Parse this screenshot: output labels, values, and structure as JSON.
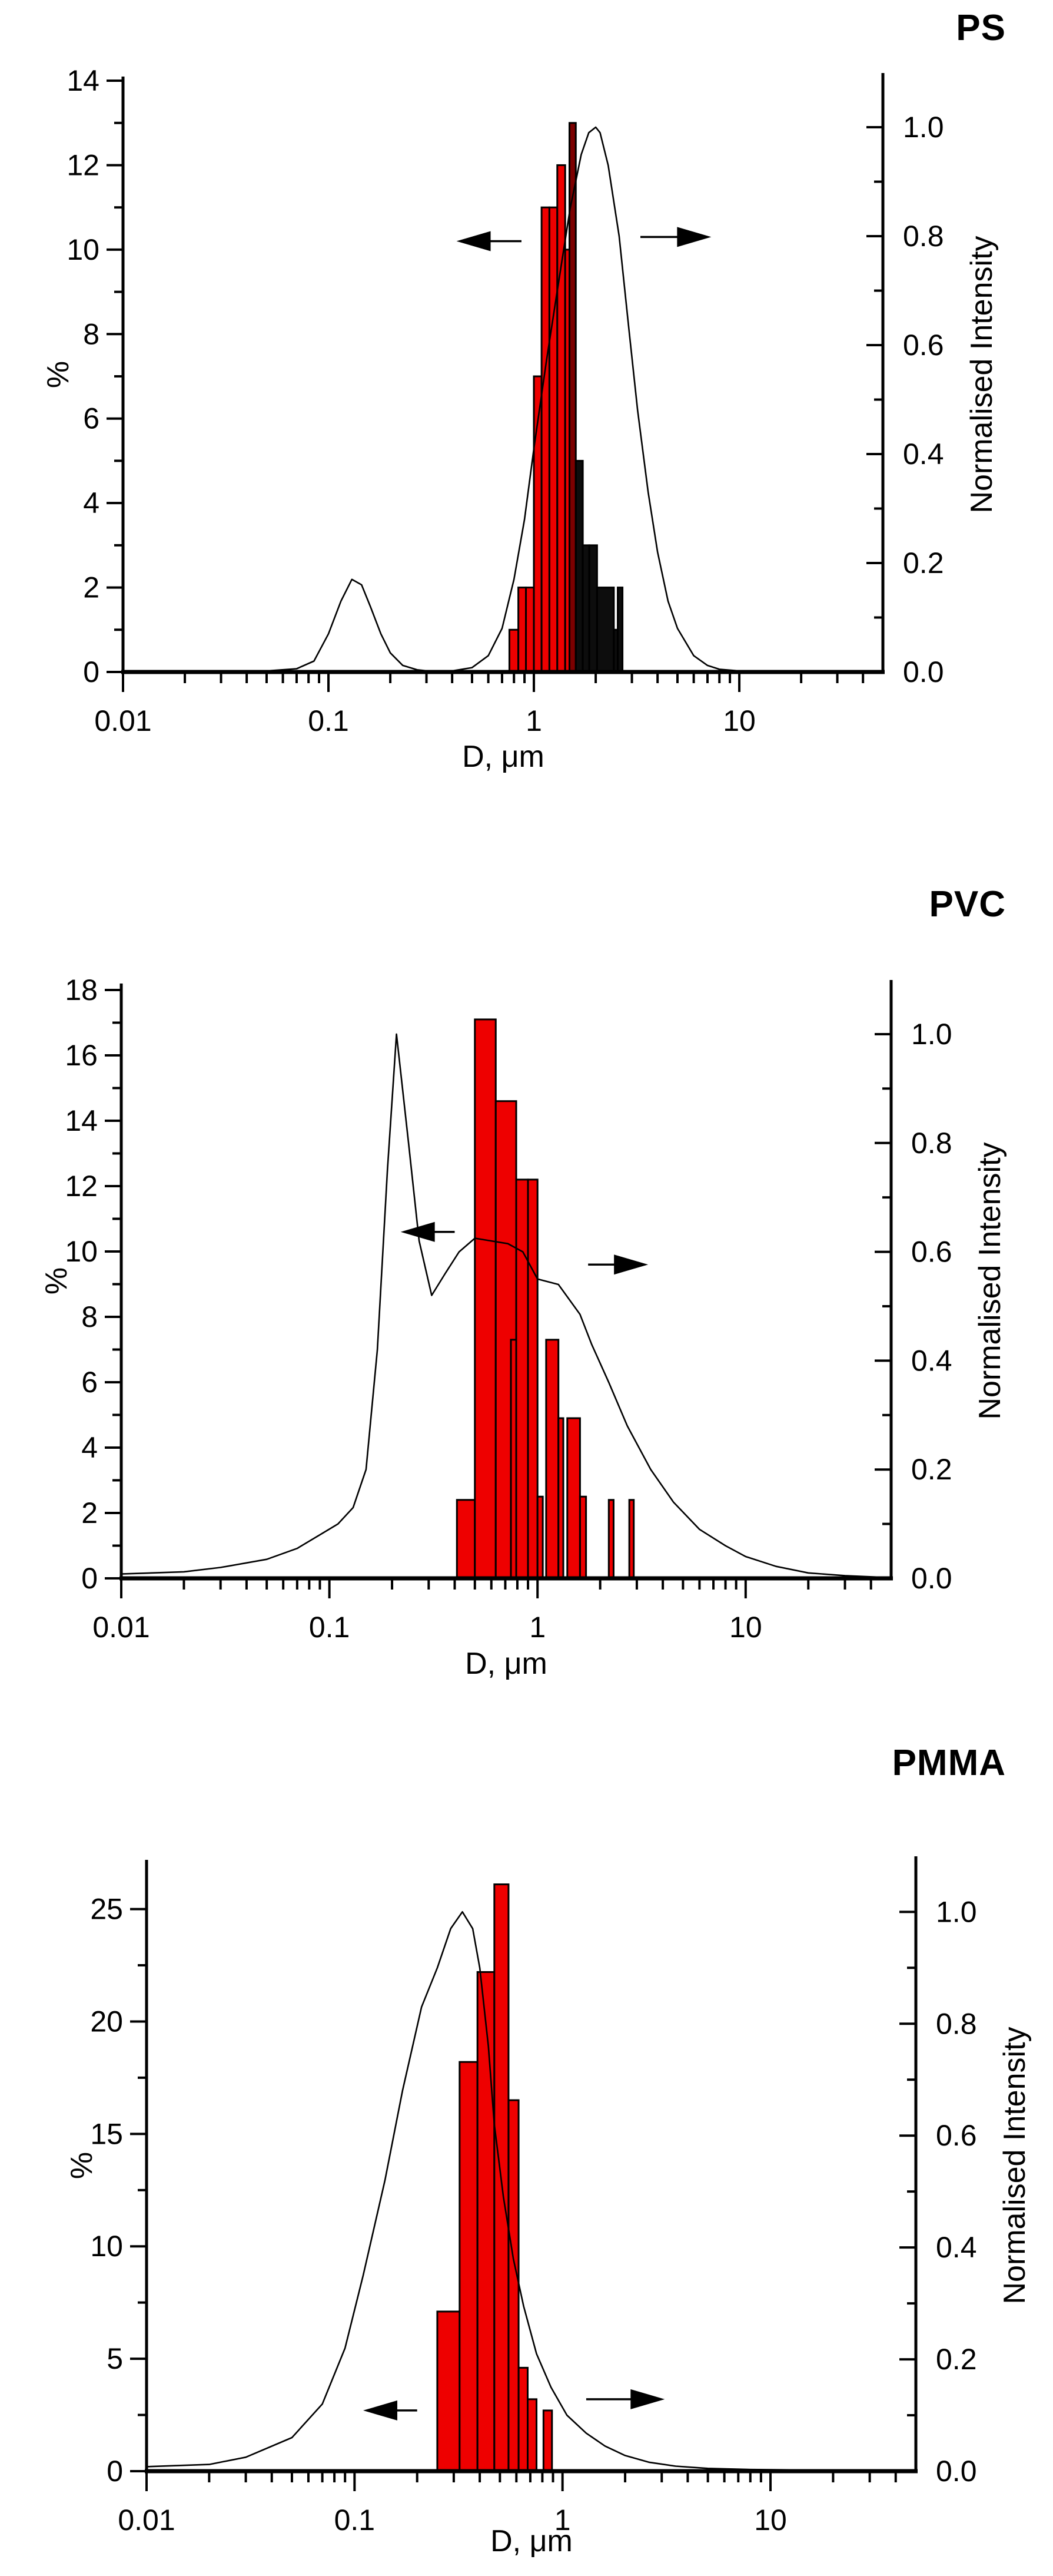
{
  "page": {
    "background": "#ffffff"
  },
  "colors": {
    "bar_red": "#ee0000",
    "bar_maroon": "#7c0000",
    "bar_black": "#0d0d0d",
    "curve": "#000000",
    "axis": "#000000"
  },
  "chart_data": [
    {
      "id": "ps",
      "type": "bar+line",
      "title": "PS",
      "x_axis": {
        "label": "D, μm",
        "scale": "log",
        "min": 0.01,
        "max": 50,
        "tick_labels": [
          "0.01",
          "0.1",
          "1",
          "10"
        ],
        "tick_values": [
          0.01,
          0.1,
          1,
          10
        ]
      },
      "left_axis": {
        "label": "%",
        "min": 0,
        "max": 14,
        "major_step": 2,
        "minor_step": 1,
        "tick_labels": [
          "0",
          "2",
          "4",
          "6",
          "8",
          "10",
          "12",
          "14"
        ]
      },
      "right_axis": {
        "label": "Normalised Intensity",
        "min": 0.0,
        "max": 1.0,
        "major_step": 0.2,
        "minor_step": 0.1,
        "tick_labels": [
          "0.0",
          "0.2",
          "0.4",
          "0.6",
          "0.8",
          "1.0"
        ]
      },
      "bars": [
        {
          "d_left": 0.76,
          "d_right": 0.84,
          "pct": 1.0,
          "color": "red"
        },
        {
          "d_left": 0.84,
          "d_right": 0.915,
          "pct": 2.0,
          "color": "red"
        },
        {
          "d_left": 0.915,
          "d_right": 1.0,
          "pct": 2.0,
          "color": "red"
        },
        {
          "d_left": 1.0,
          "d_right": 1.09,
          "pct": 7.0,
          "color": "red"
        },
        {
          "d_left": 1.09,
          "d_right": 1.19,
          "pct": 11.0,
          "color": "red"
        },
        {
          "d_left": 1.19,
          "d_right": 1.3,
          "pct": 11.0,
          "color": "red"
        },
        {
          "d_left": 1.3,
          "d_right": 1.42,
          "pct": 12.0,
          "color": "red"
        },
        {
          "d_left": 1.42,
          "d_right": 1.5,
          "pct": 10.0,
          "color": "red"
        },
        {
          "d_left": 1.49,
          "d_right": 1.6,
          "pct": 13.0,
          "color": "maroon"
        },
        {
          "d_left": 1.6,
          "d_right": 1.73,
          "pct": 5.0,
          "color": "black"
        },
        {
          "d_left": 1.73,
          "d_right": 1.86,
          "pct": 3.0,
          "color": "black"
        },
        {
          "d_left": 1.86,
          "d_right": 2.03,
          "pct": 3.0,
          "color": "black"
        },
        {
          "d_left": 2.03,
          "d_right": 2.45,
          "pct": 2.0,
          "color": "black"
        },
        {
          "d_left": 2.45,
          "d_right": 2.56,
          "pct": 1.0,
          "color": "black"
        },
        {
          "d_left": 2.56,
          "d_right": 2.7,
          "pct": 2.0,
          "color": "black"
        }
      ],
      "curve": [
        [
          0.01,
          0.001
        ],
        [
          0.03,
          0.001
        ],
        [
          0.05,
          0.002
        ],
        [
          0.07,
          0.006
        ],
        [
          0.085,
          0.02
        ],
        [
          0.1,
          0.07
        ],
        [
          0.115,
          0.13
        ],
        [
          0.13,
          0.17
        ],
        [
          0.145,
          0.16
        ],
        [
          0.16,
          0.12
        ],
        [
          0.18,
          0.07
        ],
        [
          0.2,
          0.035
        ],
        [
          0.23,
          0.012
        ],
        [
          0.27,
          0.004
        ],
        [
          0.32,
          0.001
        ],
        [
          0.4,
          0.002
        ],
        [
          0.5,
          0.008
        ],
        [
          0.6,
          0.03
        ],
        [
          0.7,
          0.08
        ],
        [
          0.8,
          0.17
        ],
        [
          0.9,
          0.28
        ],
        [
          1.0,
          0.41
        ],
        [
          1.15,
          0.57
        ],
        [
          1.3,
          0.7
        ],
        [
          1.5,
          0.85
        ],
        [
          1.7,
          0.95
        ],
        [
          1.85,
          0.99
        ],
        [
          2.0,
          1.0
        ],
        [
          2.1,
          0.99
        ],
        [
          2.3,
          0.93
        ],
        [
          2.6,
          0.8
        ],
        [
          2.9,
          0.63
        ],
        [
          3.2,
          0.48
        ],
        [
          3.6,
          0.33
        ],
        [
          4.0,
          0.22
        ],
        [
          4.5,
          0.13
        ],
        [
          5.0,
          0.08
        ],
        [
          6.0,
          0.03
        ],
        [
          7.0,
          0.012
        ],
        [
          8.0,
          0.005
        ],
        [
          10.0,
          0.002
        ],
        [
          13.0,
          0.001
        ],
        [
          20.0,
          0.0
        ],
        [
          45.0,
          0.0
        ]
      ],
      "arrows": [
        {
          "direction": "left",
          "y_pct": 10.2,
          "tail_um": 0.87,
          "head_um": 0.42
        },
        {
          "direction": "right",
          "y_pct": 10.3,
          "tail_um": 3.3,
          "head_um": 7.3
        }
      ]
    },
    {
      "id": "pvc",
      "type": "bar+line",
      "title": "PVC",
      "x_axis": {
        "label": "D, μm",
        "scale": "log",
        "min": 0.01,
        "max": 50,
        "tick_labels": [
          "0.01",
          "0.1",
          "1",
          "10"
        ],
        "tick_values": [
          0.01,
          0.1,
          1,
          10
        ]
      },
      "left_axis": {
        "label": "%",
        "min": 0,
        "max": 18,
        "major_step": 2,
        "minor_step": 1,
        "tick_labels": [
          "0",
          "2",
          "4",
          "6",
          "8",
          "10",
          "12",
          "14",
          "16",
          "18"
        ]
      },
      "right_axis": {
        "label": "Normalised Intensity",
        "min": 0.0,
        "max": 1.0,
        "major_step": 0.2,
        "minor_step": 0.1,
        "tick_labels": [
          "0.0",
          "0.2",
          "0.4",
          "0.6",
          "0.8",
          "1.0"
        ]
      },
      "bars": [
        {
          "d_left": 0.41,
          "d_right": 0.5,
          "pct": 2.4,
          "color": "red"
        },
        {
          "d_left": 0.5,
          "d_right": 0.63,
          "pct": 17.1,
          "color": "red"
        },
        {
          "d_left": 0.63,
          "d_right": 0.79,
          "pct": 14.6,
          "color": "red"
        },
        {
          "d_left": 0.745,
          "d_right": 0.795,
          "pct": 7.3,
          "color": "red"
        },
        {
          "d_left": 0.79,
          "d_right": 0.9,
          "pct": 12.2,
          "color": "red"
        },
        {
          "d_left": 0.9,
          "d_right": 1.0,
          "pct": 12.2,
          "color": "red"
        },
        {
          "d_left": 1.0,
          "d_right": 1.06,
          "pct": 2.5,
          "color": "red"
        },
        {
          "d_left": 1.1,
          "d_right": 1.26,
          "pct": 7.3,
          "color": "red"
        },
        {
          "d_left": 1.26,
          "d_right": 1.33,
          "pct": 4.9,
          "color": "red"
        },
        {
          "d_left": 1.39,
          "d_right": 1.6,
          "pct": 4.9,
          "color": "red"
        },
        {
          "d_left": 1.6,
          "d_right": 1.71,
          "pct": 2.5,
          "color": "red"
        },
        {
          "d_left": 2.2,
          "d_right": 2.32,
          "pct": 2.4,
          "color": "red"
        },
        {
          "d_left": 2.76,
          "d_right": 2.9,
          "pct": 2.4,
          "color": "red"
        }
      ],
      "curve": [
        [
          0.01,
          0.008
        ],
        [
          0.02,
          0.012
        ],
        [
          0.03,
          0.02
        ],
        [
          0.05,
          0.035
        ],
        [
          0.07,
          0.055
        ],
        [
          0.09,
          0.08
        ],
        [
          0.11,
          0.1
        ],
        [
          0.13,
          0.13
        ],
        [
          0.15,
          0.2
        ],
        [
          0.17,
          0.42
        ],
        [
          0.19,
          0.75
        ],
        [
          0.21,
          1.0
        ],
        [
          0.24,
          0.8
        ],
        [
          0.27,
          0.62
        ],
        [
          0.31,
          0.52
        ],
        [
          0.36,
          0.56
        ],
        [
          0.42,
          0.6
        ],
        [
          0.5,
          0.625
        ],
        [
          0.6,
          0.62
        ],
        [
          0.72,
          0.615
        ],
        [
          0.85,
          0.6
        ],
        [
          1.0,
          0.55
        ],
        [
          1.26,
          0.54
        ],
        [
          1.6,
          0.485
        ],
        [
          1.82,
          0.43
        ],
        [
          2.2,
          0.36
        ],
        [
          2.7,
          0.28
        ],
        [
          3.5,
          0.2
        ],
        [
          4.5,
          0.14
        ],
        [
          6.0,
          0.09
        ],
        [
          8.0,
          0.06
        ],
        [
          10.0,
          0.04
        ],
        [
          14.0,
          0.022
        ],
        [
          20.0,
          0.01
        ],
        [
          30.0,
          0.005
        ],
        [
          45.0,
          0.002
        ]
      ],
      "arrows": [
        {
          "direction": "left",
          "y_pct": 10.6,
          "tail_um": 0.4,
          "head_um": 0.22
        },
        {
          "direction": "right",
          "y_pct": 9.6,
          "tail_um": 1.75,
          "head_um": 3.4
        }
      ]
    },
    {
      "id": "pmma",
      "type": "bar+line",
      "title": "PMMA",
      "x_axis": {
        "label": "D, μm",
        "scale": "log",
        "min": 0.01,
        "max": 50,
        "tick_labels": [
          "0.01",
          "0.1",
          "1",
          "10"
        ],
        "tick_values": [
          0.01,
          0.1,
          1,
          10
        ]
      },
      "left_axis": {
        "label": "%",
        "min": 0,
        "max": 27,
        "major_step": 5,
        "minor_step": 2.5,
        "tick_labels": [
          "0",
          "5",
          "10",
          "15",
          "20",
          "25"
        ]
      },
      "right_axis": {
        "label": "Normalised Intensity",
        "min": 0.0,
        "max": 1.0,
        "major_step": 0.2,
        "minor_step": 0.1,
        "tick_labels": [
          "0.0",
          "0.2",
          "0.4",
          "0.6",
          "0.8",
          "1.0"
        ]
      },
      "bars": [
        {
          "d_left": 0.25,
          "d_right": 0.32,
          "pct": 7.1,
          "color": "red"
        },
        {
          "d_left": 0.32,
          "d_right": 0.39,
          "pct": 18.2,
          "color": "red"
        },
        {
          "d_left": 0.39,
          "d_right": 0.47,
          "pct": 22.2,
          "color": "red"
        },
        {
          "d_left": 0.47,
          "d_right": 0.55,
          "pct": 26.1,
          "color": "red"
        },
        {
          "d_left": 0.55,
          "d_right": 0.615,
          "pct": 16.5,
          "color": "red"
        },
        {
          "d_left": 0.615,
          "d_right": 0.68,
          "pct": 4.6,
          "color": "red"
        },
        {
          "d_left": 0.68,
          "d_right": 0.75,
          "pct": 3.2,
          "color": "red"
        },
        {
          "d_left": 0.81,
          "d_right": 0.89,
          "pct": 2.7,
          "color": "red"
        }
      ],
      "curve": [
        [
          0.01,
          0.008
        ],
        [
          0.02,
          0.012
        ],
        [
          0.03,
          0.025
        ],
        [
          0.05,
          0.06
        ],
        [
          0.07,
          0.12
        ],
        [
          0.09,
          0.22
        ],
        [
          0.11,
          0.35
        ],
        [
          0.14,
          0.52
        ],
        [
          0.17,
          0.68
        ],
        [
          0.21,
          0.83
        ],
        [
          0.25,
          0.9
        ],
        [
          0.29,
          0.97
        ],
        [
          0.33,
          1.0
        ],
        [
          0.37,
          0.97
        ],
        [
          0.4,
          0.9
        ],
        [
          0.44,
          0.76
        ],
        [
          0.47,
          0.62
        ],
        [
          0.52,
          0.49
        ],
        [
          0.58,
          0.38
        ],
        [
          0.65,
          0.295
        ],
        [
          0.75,
          0.21
        ],
        [
          0.88,
          0.15
        ],
        [
          1.05,
          0.1
        ],
        [
          1.3,
          0.068
        ],
        [
          1.6,
          0.045
        ],
        [
          2.0,
          0.028
        ],
        [
          2.6,
          0.016
        ],
        [
          3.5,
          0.009
        ],
        [
          5.0,
          0.005
        ],
        [
          8.0,
          0.003
        ],
        [
          15.0,
          0.002
        ],
        [
          30.0,
          0.001
        ],
        [
          45.0,
          0.001
        ]
      ],
      "arrows": [
        {
          "direction": "left",
          "y_pct": 2.7,
          "tail_um": 0.2,
          "head_um": 0.11
        },
        {
          "direction": "right",
          "y_pct": 3.2,
          "tail_um": 1.3,
          "head_um": 3.1
        }
      ]
    }
  ]
}
